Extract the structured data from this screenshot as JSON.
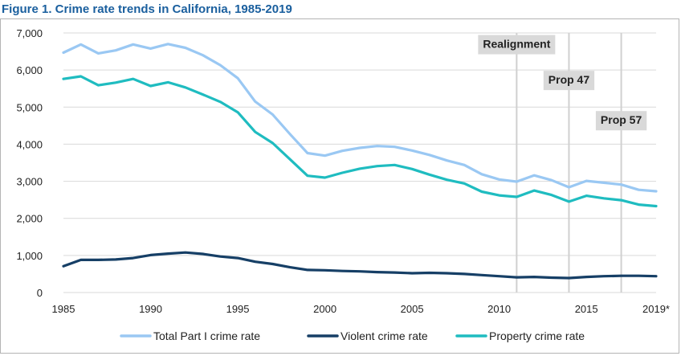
{
  "figure_title": "Figure 1. Crime rate trends in California, 1985-2019",
  "colors": {
    "total": "#9ac8f3",
    "violent": "#163f66",
    "property": "#1fbcc0",
    "grid": "#d9d9d9",
    "marker": "#d0d0d0",
    "marker_label_bg": "#d9d9d9",
    "text": "#222222"
  },
  "chart_data": {
    "type": "line",
    "title": "Crime rate trends in California, 1985-2019",
    "xlabel": "",
    "ylabel": "",
    "xlim": [
      1985,
      2019
    ],
    "ylim": [
      0,
      7000
    ],
    "grid": true,
    "legend_position": "bottom",
    "y_ticks": [
      0,
      1000,
      2000,
      3000,
      4000,
      5000,
      6000,
      7000
    ],
    "y_tick_labels": [
      "0",
      "1,000",
      "2,000",
      "3,000",
      "4,000",
      "5,000",
      "6,000",
      "7,000"
    ],
    "x_ticks": [
      1985,
      1990,
      1995,
      2000,
      2005,
      2010,
      2015,
      2019
    ],
    "x_tick_labels": [
      "1985",
      "1990",
      "1995",
      "2000",
      "2005",
      "2010",
      "2015",
      "2019*"
    ],
    "x": [
      1985,
      1986,
      1987,
      1988,
      1989,
      1990,
      1991,
      1992,
      1993,
      1994,
      1995,
      1996,
      1997,
      1998,
      1999,
      2000,
      2001,
      2002,
      2003,
      2004,
      2005,
      2006,
      2007,
      2008,
      2009,
      2010,
      2011,
      2012,
      2013,
      2014,
      2015,
      2016,
      2017,
      2018,
      2019
    ],
    "series": [
      {
        "name": "Total Part I crime rate",
        "color_key": "total",
        "values": [
          6470,
          6690,
          6450,
          6530,
          6690,
          6580,
          6700,
          6600,
          6400,
          6130,
          5780,
          5150,
          4800,
          4270,
          3760,
          3690,
          3820,
          3900,
          3950,
          3930,
          3830,
          3710,
          3560,
          3440,
          3190,
          3050,
          2990,
          3160,
          3030,
          2840,
          3010,
          2960,
          2910,
          2770,
          2730
        ]
      },
      {
        "name": "Violent crime rate",
        "color_key": "violent",
        "values": [
          710,
          880,
          880,
          890,
          930,
          1010,
          1050,
          1080,
          1040,
          970,
          930,
          830,
          770,
          680,
          610,
          600,
          580,
          570,
          550,
          540,
          520,
          530,
          520,
          500,
          470,
          440,
          410,
          420,
          400,
          390,
          420,
          440,
          450,
          450,
          440
        ]
      },
      {
        "name": "Property crime rate",
        "color_key": "property",
        "values": [
          5760,
          5830,
          5590,
          5660,
          5760,
          5570,
          5670,
          5530,
          5340,
          5140,
          4860,
          4330,
          4030,
          3590,
          3150,
          3100,
          3230,
          3340,
          3410,
          3440,
          3330,
          3180,
          3040,
          2940,
          2720,
          2620,
          2580,
          2750,
          2630,
          2450,
          2610,
          2540,
          2490,
          2370,
          2330
        ]
      }
    ],
    "annotations": [
      {
        "label": "Realignment",
        "x": 2011
      },
      {
        "label": "Prop 47",
        "x": 2014
      },
      {
        "label": "Prop 57",
        "x": 2017
      }
    ]
  }
}
